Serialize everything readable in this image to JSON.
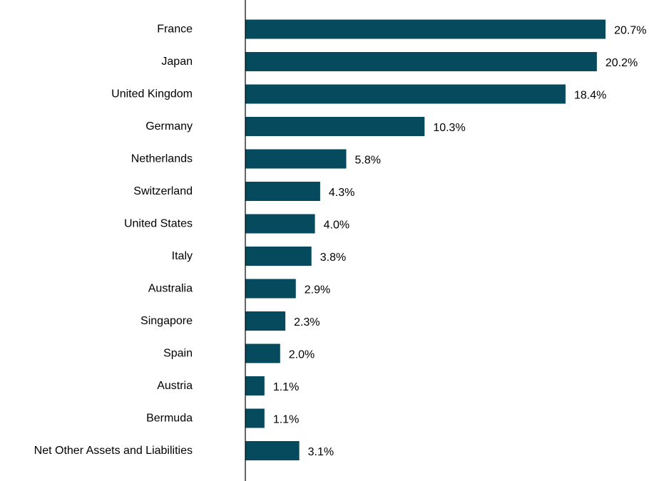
{
  "chart_data": {
    "type": "bar",
    "orientation": "horizontal",
    "categories": [
      "France",
      "Japan",
      "United Kingdom",
      "Germany",
      "Netherlands",
      "Switzerland",
      "United States",
      "Italy",
      "Australia",
      "Singapore",
      "Spain",
      "Austria",
      "Bermuda",
      "Net Other Assets and Liabilities"
    ],
    "values": [
      20.7,
      20.2,
      18.4,
      10.3,
      5.8,
      4.3,
      4.0,
      3.8,
      2.9,
      2.3,
      2.0,
      1.1,
      1.1,
      3.1
    ],
    "value_labels": [
      "20.7%",
      "20.2%",
      "18.4%",
      "10.3%",
      "5.8%",
      "4.3%",
      "4.0%",
      "3.8%",
      "2.9%",
      "2.3%",
      "2.0%",
      "1.1%",
      "1.1%",
      "3.1%"
    ],
    "grid": false,
    "legend": "none",
    "bar_color": "#064a5e"
  }
}
